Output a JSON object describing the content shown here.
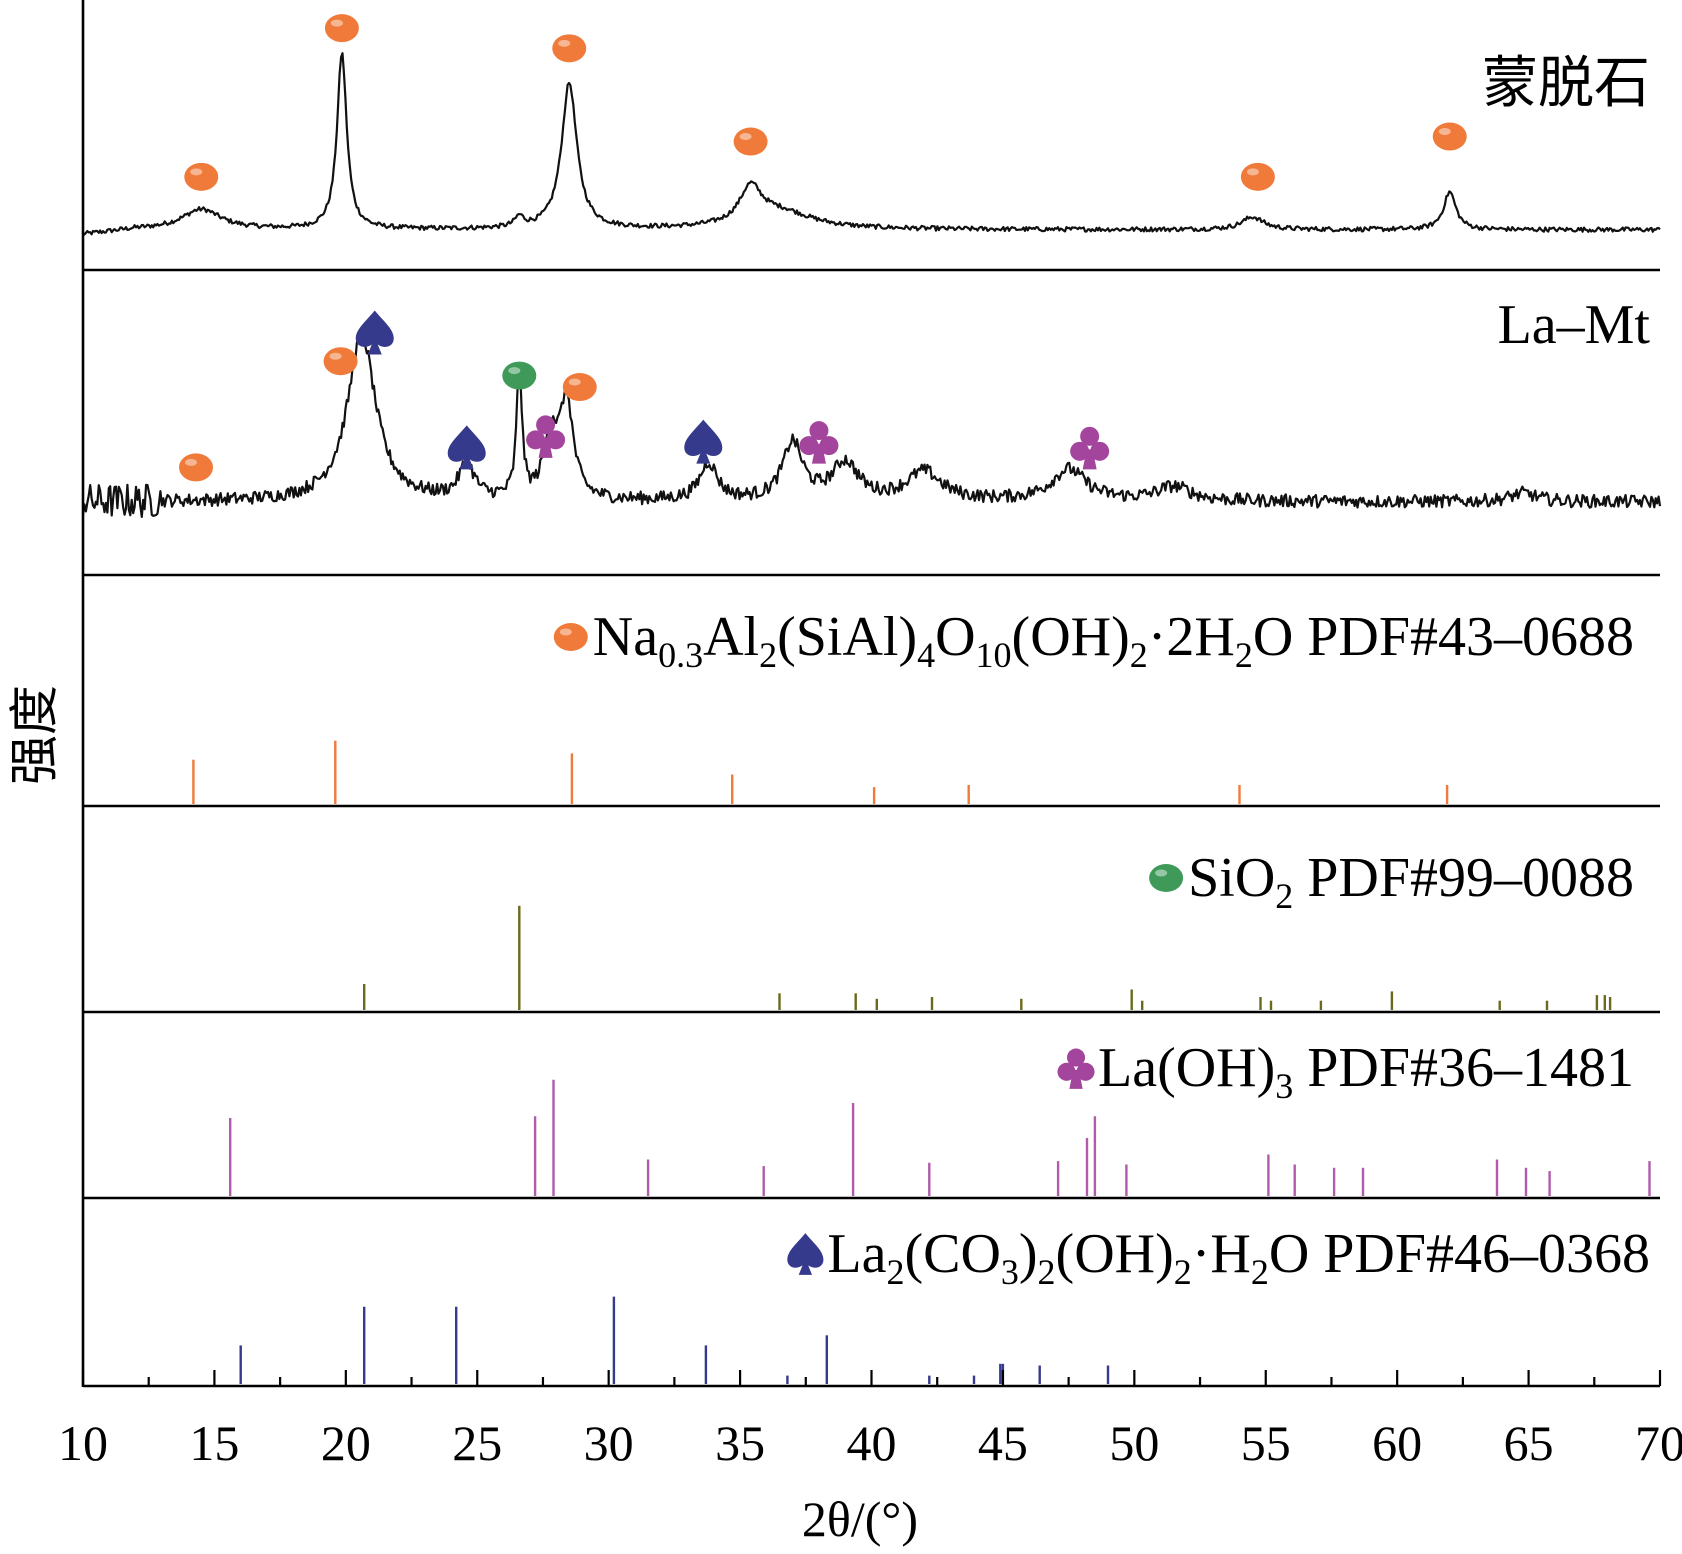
{
  "chart_data": {
    "type": "line",
    "xlabel": "2θ/(°)",
    "ylabel": "强度",
    "xlim": [
      10,
      70
    ],
    "x_ticks": [
      "10",
      "15",
      "20",
      "25",
      "30",
      "35",
      "40",
      "45",
      "50",
      "55",
      "60",
      "65",
      "70"
    ],
    "grid": false,
    "panels": [
      {
        "kind": "pattern",
        "label": "蒙脱石",
        "baseline": 0.12,
        "peaks": [
          {
            "x": 14.5,
            "h": 0.08,
            "w": 0.9
          },
          {
            "x": 19.85,
            "h": 0.7,
            "w": 0.22
          },
          {
            "x": 26.6,
            "h": 0.04,
            "w": 0.2
          },
          {
            "x": 28.5,
            "h": 0.58,
            "w": 0.35
          },
          {
            "x": 35.4,
            "h": 0.14,
            "w": 0.5
          },
          {
            "x": 36.5,
            "h": 0.07,
            "w": 1.5
          },
          {
            "x": 54.5,
            "h": 0.05,
            "w": 0.5
          },
          {
            "x": 62.0,
            "h": 0.15,
            "w": 0.28
          }
        ],
        "markers": [
          {
            "symbol": "circle",
            "phase": 0,
            "x": 14.5,
            "y": 0.33
          },
          {
            "symbol": "circle",
            "phase": 0,
            "x": 19.85,
            "y": 0.92
          },
          {
            "symbol": "circle",
            "phase": 0,
            "x": 28.5,
            "y": 0.84
          },
          {
            "symbol": "circle",
            "phase": 0,
            "x": 35.4,
            "y": 0.47
          },
          {
            "symbol": "circle",
            "phase": 0,
            "x": 54.7,
            "y": 0.33
          },
          {
            "symbol": "circle",
            "phase": 0,
            "x": 62.0,
            "y": 0.49
          }
        ]
      },
      {
        "kind": "pattern",
        "label": "La–Mt",
        "baseline": 0.22,
        "peaks": [
          {
            "x": 20.6,
            "h": 0.58,
            "w": 0.65
          },
          {
            "x": 24.6,
            "h": 0.12,
            "w": 0.35
          },
          {
            "x": 26.6,
            "h": 0.46,
            "w": 0.12
          },
          {
            "x": 27.8,
            "h": 0.22,
            "w": 0.3
          },
          {
            "x": 28.4,
            "h": 0.34,
            "w": 0.3
          },
          {
            "x": 33.8,
            "h": 0.13,
            "w": 0.4
          },
          {
            "x": 37.0,
            "h": 0.2,
            "w": 0.45
          },
          {
            "x": 39.0,
            "h": 0.13,
            "w": 0.6
          },
          {
            "x": 42.0,
            "h": 0.1,
            "w": 0.8
          },
          {
            "x": 47.5,
            "h": 0.11,
            "w": 0.8
          },
          {
            "x": 51.5,
            "h": 0.05,
            "w": 0.8
          },
          {
            "x": 64.8,
            "h": 0.03,
            "w": 0.6
          }
        ],
        "markers": [
          {
            "symbol": "circle",
            "phase": 0,
            "x": 14.3,
            "y": 0.34
          },
          {
            "symbol": "spade",
            "phase": 3,
            "x": 21.1,
            "y": 0.81
          },
          {
            "symbol": "circle",
            "phase": 0,
            "x": 19.8,
            "y": 0.71
          },
          {
            "symbol": "spade",
            "phase": 3,
            "x": 24.6,
            "y": 0.41
          },
          {
            "symbol": "circle",
            "phase": 1,
            "x": 26.6,
            "y": 0.66
          },
          {
            "symbol": "club",
            "phase": 2,
            "x": 27.6,
            "y": 0.45
          },
          {
            "symbol": "circle",
            "phase": 0,
            "x": 28.9,
            "y": 0.62
          },
          {
            "symbol": "spade",
            "phase": 3,
            "x": 33.6,
            "y": 0.43
          },
          {
            "symbol": "club",
            "phase": 2,
            "x": 38.0,
            "y": 0.43
          },
          {
            "symbol": "club",
            "phase": 2,
            "x": 48.3,
            "y": 0.41
          }
        ]
      },
      {
        "kind": "reference",
        "phase": 0,
        "label_text": "Na0.3Al2(SiAl)4O10(OH)2·2H2O PDF#43–0688",
        "sticks": [
          [
            14.2,
            0.21
          ],
          [
            19.6,
            0.3
          ],
          [
            28.6,
            0.24
          ],
          [
            34.7,
            0.14
          ],
          [
            40.1,
            0.08
          ],
          [
            43.7,
            0.09
          ],
          [
            54.0,
            0.09
          ],
          [
            61.9,
            0.09
          ]
        ]
      },
      {
        "kind": "reference",
        "phase": 1,
        "label_text": "SiO2 PDF#99–0088",
        "sticks": [
          [
            20.7,
            0.14
          ],
          [
            26.6,
            0.56
          ],
          [
            36.5,
            0.09
          ],
          [
            39.4,
            0.09
          ],
          [
            40.2,
            0.06
          ],
          [
            42.3,
            0.07
          ],
          [
            45.7,
            0.06
          ],
          [
            49.9,
            0.11
          ],
          [
            50.3,
            0.05
          ],
          [
            54.8,
            0.07
          ],
          [
            55.2,
            0.05
          ],
          [
            57.1,
            0.05
          ],
          [
            59.8,
            0.1
          ],
          [
            63.9,
            0.05
          ],
          [
            65.7,
            0.05
          ],
          [
            67.6,
            0.08
          ],
          [
            67.9,
            0.08
          ],
          [
            68.1,
            0.07
          ]
        ]
      },
      {
        "kind": "reference",
        "phase": 2,
        "label_text": "La(OH)3 PDF#36–1481",
        "sticks": [
          [
            15.6,
            0.47
          ],
          [
            27.2,
            0.48
          ],
          [
            27.9,
            0.7
          ],
          [
            31.5,
            0.22
          ],
          [
            35.9,
            0.18
          ],
          [
            39.3,
            0.56
          ],
          [
            42.2,
            0.2
          ],
          [
            47.1,
            0.21
          ],
          [
            48.2,
            0.35
          ],
          [
            48.5,
            0.48
          ],
          [
            49.7,
            0.19
          ],
          [
            55.1,
            0.25
          ],
          [
            56.1,
            0.19
          ],
          [
            57.6,
            0.17
          ],
          [
            58.7,
            0.17
          ],
          [
            63.8,
            0.22
          ],
          [
            64.9,
            0.17
          ],
          [
            65.8,
            0.15
          ],
          [
            69.6,
            0.21
          ]
        ]
      },
      {
        "kind": "reference",
        "phase": 3,
        "label_text": "La2(CO3)2(OH)2·H2O  PDF#46–0368",
        "sticks": [
          [
            16.0,
            0.23
          ],
          [
            20.7,
            0.46
          ],
          [
            24.2,
            0.46
          ],
          [
            30.2,
            0.52
          ],
          [
            33.7,
            0.23
          ],
          [
            36.8,
            0.05
          ],
          [
            38.3,
            0.29
          ],
          [
            42.2,
            0.05
          ],
          [
            43.9,
            0.05
          ],
          [
            44.9,
            0.12
          ],
          [
            45.0,
            0.12
          ],
          [
            46.4,
            0.11
          ],
          [
            49.0,
            0.11
          ]
        ]
      }
    ],
    "phases": [
      {
        "symbol": "circle",
        "color": "#f07a3a",
        "label_parts": [
          [
            "Na",
            ""
          ],
          [
            "0.3",
            "sub"
          ],
          [
            "Al",
            ""
          ],
          [
            "2",
            "sub"
          ],
          [
            "(SiAl)",
            ""
          ],
          [
            "4",
            "sub"
          ],
          [
            "O",
            ""
          ],
          [
            "10",
            "sub"
          ],
          [
            "(OH)",
            ""
          ],
          [
            "2",
            "sub"
          ],
          [
            "·2H",
            ""
          ],
          [
            "2",
            "sub"
          ],
          [
            "O PDF#43–0688",
            ""
          ]
        ]
      },
      {
        "symbol": "circle",
        "color": "#3f9a5a",
        "label_parts": [
          [
            "SiO",
            ""
          ],
          [
            "2",
            "sub"
          ],
          [
            " PDF#99–0088",
            ""
          ]
        ]
      },
      {
        "symbol": "club",
        "color": "#a3459c",
        "stick_color": "#b05cab",
        "label_parts": [
          [
            "La(OH)",
            ""
          ],
          [
            "3",
            "sub"
          ],
          [
            " PDF#36–1481",
            ""
          ]
        ]
      },
      {
        "symbol": "spade",
        "color": "#353a8c",
        "label_parts": [
          [
            "La",
            ""
          ],
          [
            "2",
            "sub"
          ],
          [
            "(CO",
            ""
          ],
          [
            "3",
            "sub"
          ],
          [
            ")",
            ""
          ],
          [
            "2",
            "sub"
          ],
          [
            "(OH)",
            ""
          ],
          [
            "2",
            "sub"
          ],
          [
            "·H",
            ""
          ],
          [
            "2",
            "sub"
          ],
          [
            "O  PDF#46–0368",
            ""
          ]
        ]
      }
    ],
    "colors": {
      "axis": "#000000",
      "trace": "#111111",
      "sio2_sticks": "#6b6a1c"
    }
  }
}
